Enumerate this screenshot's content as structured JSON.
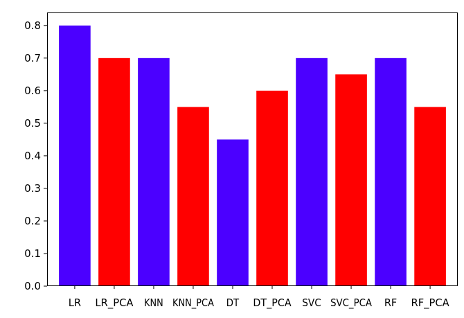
{
  "chart_data": {
    "type": "bar",
    "categories": [
      "LR",
      "LR_PCA",
      "KNN",
      "KNN_PCA",
      "DT",
      "DT_PCA",
      "SVC",
      "SVC_PCA",
      "RF",
      "RF_PCA"
    ],
    "values": [
      0.8,
      0.7,
      0.7,
      0.55,
      0.45,
      0.6,
      0.7,
      0.65,
      0.7,
      0.55
    ],
    "colors": [
      "#4B00FF",
      "#FF0000",
      "#4B00FF",
      "#FF0000",
      "#4B00FF",
      "#FF0000",
      "#4B00FF",
      "#FF0000",
      "#4B00FF",
      "#FF0000"
    ],
    "yticks": [
      "0.0",
      "0.1",
      "0.2",
      "0.3",
      "0.4",
      "0.5",
      "0.6",
      "0.7",
      "0.8"
    ],
    "ylim": [
      0,
      0.84
    ],
    "title": "",
    "xlabel": "",
    "ylabel": "",
    "grid": false
  }
}
